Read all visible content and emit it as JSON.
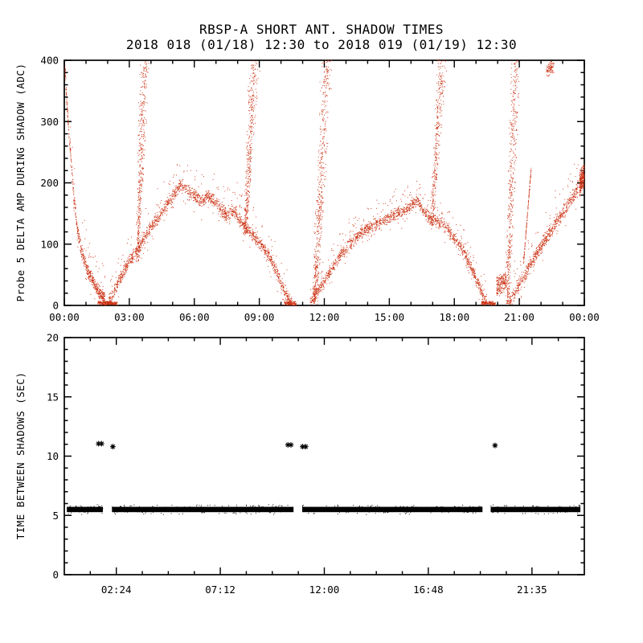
{
  "title": "RBSP-A SHORT ANT. SHADOW TIMES",
  "subtitle": "2018 018 (01/18) 12:30 to 2018 019 (01/19) 12:30",
  "background_color": "#ffffff",
  "chart_data": [
    {
      "panel": "top",
      "type": "scatter",
      "ylabel": "Probe 5 DELTA AMP DURING SHADOW (ADC)",
      "point_color": "#cc3315",
      "axis_color": "#000000",
      "xlim_hours": [
        0,
        24
      ],
      "ylim": [
        0,
        400
      ],
      "x_ticks": {
        "values_hours": [
          0,
          3,
          6,
          9,
          12,
          15,
          18,
          21,
          24
        ],
        "labels": [
          "00:00",
          "03:00",
          "06:00",
          "09:00",
          "12:00",
          "15:00",
          "18:00",
          "21:00",
          "00:00"
        ],
        "minor_hours": [
          1,
          2,
          4,
          5,
          7,
          8,
          10,
          11,
          13,
          14,
          16,
          17,
          19,
          20,
          22,
          23
        ]
      },
      "y_ticks": {
        "values": [
          0,
          100,
          200,
          300,
          400
        ],
        "labels": [
          "0",
          "100",
          "200",
          "300",
          "400"
        ],
        "minor": [
          20,
          40,
          60,
          80,
          120,
          140,
          160,
          180,
          220,
          240,
          260,
          280,
          320,
          340,
          360,
          380
        ]
      },
      "features": [
        {
          "kind": "band",
          "name": "initial-descent",
          "n": 650,
          "thickness": 26,
          "halo": 90,
          "path": [
            [
              0.03,
              390
            ],
            [
              0.1,
              345
            ],
            [
              0.2,
              290
            ],
            [
              0.32,
              235
            ],
            [
              0.45,
              175
            ],
            [
              0.6,
              125
            ],
            [
              0.8,
              88
            ],
            [
              1.05,
              60
            ],
            [
              1.3,
              42
            ],
            [
              1.6,
              22
            ],
            [
              1.9,
              8
            ]
          ]
        },
        {
          "kind": "band",
          "name": "zero-cluster-1",
          "n": 240,
          "thickness": 7,
          "path": [
            [
              1.55,
              4
            ],
            [
              2.45,
              3
            ]
          ]
        },
        {
          "kind": "band",
          "name": "arc-1",
          "n": 1900,
          "thickness": 24,
          "halo": 70,
          "path": [
            [
              2.05,
              6
            ],
            [
              2.5,
              38
            ],
            [
              3.0,
              72
            ],
            [
              3.5,
              98
            ],
            [
              4.0,
              128
            ],
            [
              4.5,
              152
            ],
            [
              5.0,
              178
            ],
            [
              5.35,
              196
            ],
            [
              5.7,
              190
            ],
            [
              6.0,
              179
            ],
            [
              6.3,
              169
            ],
            [
              6.6,
              178
            ],
            [
              6.9,
              171
            ],
            [
              7.2,
              158
            ],
            [
              7.5,
              147
            ],
            [
              7.8,
              154
            ],
            [
              8.1,
              139
            ],
            [
              8.45,
              124
            ],
            [
              8.8,
              111
            ],
            [
              9.1,
              99
            ],
            [
              9.45,
              80
            ],
            [
              9.8,
              54
            ],
            [
              10.1,
              28
            ],
            [
              10.35,
              11
            ],
            [
              10.5,
              3
            ]
          ]
        },
        {
          "kind": "spike",
          "name": "spike-0330",
          "n": 420,
          "t0": 3.38,
          "t1": 3.72,
          "y0": 70,
          "y1": 412,
          "w0": 0.1,
          "w1": 0.26
        },
        {
          "kind": "spike",
          "name": "spike-0840",
          "n": 420,
          "t0": 8.35,
          "t1": 8.8,
          "y0": 115,
          "y1": 412,
          "w0": 0.1,
          "w1": 0.3
        },
        {
          "kind": "band",
          "name": "zero-cluster-2",
          "n": 170,
          "thickness": 8,
          "path": [
            [
              10.15,
              4
            ],
            [
              10.7,
              3
            ]
          ]
        },
        {
          "kind": "spike",
          "name": "spike-1200",
          "n": 560,
          "t0": 11.55,
          "t1": 12.15,
          "y0": 2,
          "y1": 412,
          "w0": 0.16,
          "w1": 0.3,
          "bias": 1.25
        },
        {
          "kind": "band",
          "name": "arc-2",
          "n": 1750,
          "thickness": 22,
          "halo": 60,
          "path": [
            [
              11.35,
              5
            ],
            [
              11.8,
              28
            ],
            [
              12.3,
              58
            ],
            [
              12.8,
              84
            ],
            [
              13.3,
              104
            ],
            [
              13.8,
              121
            ],
            [
              14.3,
              131
            ],
            [
              14.8,
              139
            ],
            [
              15.3,
              149
            ],
            [
              15.8,
              157
            ],
            [
              16.1,
              166
            ],
            [
              16.35,
              171
            ],
            [
              16.6,
              151
            ],
            [
              16.9,
              142
            ],
            [
              17.2,
              137
            ],
            [
              17.5,
              131
            ],
            [
              17.8,
              119
            ],
            [
              18.1,
              104
            ],
            [
              18.45,
              87
            ],
            [
              18.8,
              59
            ],
            [
              19.1,
              37
            ],
            [
              19.35,
              14
            ],
            [
              19.5,
              4
            ]
          ]
        },
        {
          "kind": "spike",
          "name": "spike-1710",
          "n": 340,
          "t0": 16.95,
          "t1": 17.45,
          "y0": 130,
          "y1": 400,
          "w0": 0.1,
          "w1": 0.26
        },
        {
          "kind": "band",
          "name": "zero-cluster-3",
          "n": 150,
          "thickness": 7,
          "path": [
            [
              19.25,
              4
            ],
            [
              19.9,
              3
            ]
          ]
        },
        {
          "kind": "band",
          "name": "pre-spike-blob",
          "n": 200,
          "thickness": 38,
          "path": [
            [
              19.95,
              30
            ],
            [
              20.4,
              42
            ]
          ]
        },
        {
          "kind": "spike",
          "name": "spike-2040",
          "n": 470,
          "t0": 20.45,
          "t1": 20.85,
          "y0": 2,
          "y1": 412,
          "w0": 0.12,
          "w1": 0.26,
          "bias": 1.15
        },
        {
          "kind": "band",
          "name": "branch-2120",
          "n": 150,
          "thickness": 12,
          "path": [
            [
              21.2,
              70
            ],
            [
              21.55,
              225
            ]
          ]
        },
        {
          "kind": "band",
          "name": "final-rise",
          "n": 820,
          "thickness": 26,
          "halo": 70,
          "path": [
            [
              20.55,
              6
            ],
            [
              20.9,
              28
            ],
            [
              21.3,
              52
            ],
            [
              21.7,
              78
            ],
            [
              22.1,
              103
            ],
            [
              22.5,
              124
            ],
            [
              22.9,
              144
            ],
            [
              23.3,
              168
            ],
            [
              23.6,
              184
            ],
            [
              23.85,
              203
            ],
            [
              24.0,
              214
            ]
          ]
        },
        {
          "kind": "band",
          "name": "cluster-2225-high",
          "n": 90,
          "thickness": 28,
          "path": [
            [
              22.25,
              382
            ],
            [
              22.6,
              393
            ]
          ]
        },
        {
          "kind": "band",
          "name": "right-edge-cluster",
          "n": 200,
          "thickness": 48,
          "path": [
            [
              23.78,
              200
            ],
            [
              24.0,
              212
            ]
          ]
        }
      ]
    },
    {
      "panel": "bottom",
      "type": "scatter",
      "ylabel": "TIME BETWEEN SHADOWS (SEC)",
      "point_color": "#000000",
      "axis_color": "#000000",
      "xlim_hours": [
        0,
        24
      ],
      "ylim": [
        0,
        20
      ],
      "x_ticks": {
        "values_hours": [
          2.4,
          7.2,
          12.0,
          16.8,
          21.583
        ],
        "labels": [
          "02:24",
          "07:12",
          "12:00",
          "16:48",
          "21:35"
        ],
        "minor_hours": [
          1.2,
          3.6,
          4.8,
          6.0,
          8.4,
          9.6,
          10.8,
          13.2,
          14.4,
          15.6,
          18.0,
          19.2,
          20.4,
          22.8
        ]
      },
      "y_ticks": {
        "values": [
          0,
          5,
          10,
          15,
          20
        ],
        "labels": [
          "0",
          "5",
          "10",
          "15",
          "20"
        ],
        "minor": [
          1,
          2,
          3,
          4,
          6,
          7,
          8,
          9,
          11,
          12,
          13,
          14,
          16,
          17,
          18,
          19
        ]
      },
      "band": {
        "value_sec": 5.5,
        "half_width": 0.28,
        "segments_hours": [
          [
            0.12,
            1.78
          ],
          [
            2.2,
            10.58
          ],
          [
            10.98,
            19.3
          ],
          [
            19.68,
            23.82
          ]
        ]
      },
      "outliers": {
        "marker": "asterisk",
        "value_sec_approx": 11,
        "points": [
          [
            1.58,
            11.05
          ],
          [
            1.72,
            11.05
          ],
          [
            2.24,
            10.8
          ],
          [
            10.32,
            10.95
          ],
          [
            10.46,
            10.95
          ],
          [
            11.0,
            10.8
          ],
          [
            11.14,
            10.8
          ],
          [
            19.88,
            10.9
          ]
        ]
      }
    }
  ]
}
